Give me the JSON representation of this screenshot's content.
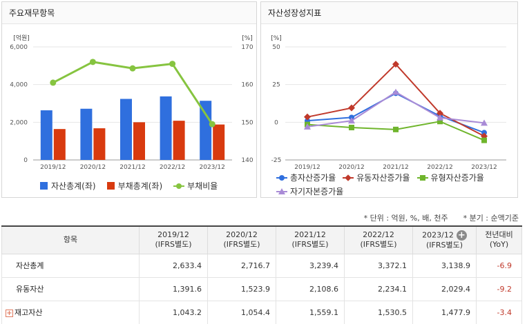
{
  "left_panel": {
    "title": "주요재무항목"
  },
  "right_panel": {
    "title": "자산성장성지표"
  },
  "chart_data": [
    {
      "type": "bar",
      "categories": [
        "2019/12",
        "2020/12",
        "2021/12",
        "2022/12",
        "2023/12"
      ],
      "y_unit": "[억원]",
      "y2_unit": "[%]",
      "ylim": [
        0,
        6000
      ],
      "y_ticks": [
        "6,000",
        "4,000",
        "2,000",
        "0"
      ],
      "y2lim": [
        140,
        170
      ],
      "y2_ticks": [
        "170",
        "160",
        "150",
        "140"
      ],
      "series": [
        {
          "name": "자산총계(좌)",
          "kind": "bar",
          "color": "#2f6fde",
          "values": [
            2633.4,
            2716.7,
            3239.4,
            3372.1,
            3138.9
          ]
        },
        {
          "name": "부채총계(좌)",
          "kind": "bar",
          "color": "#d83a0f",
          "values": [
            1640,
            1680,
            2000,
            2080,
            1880
          ]
        },
        {
          "name": "부채비율",
          "kind": "line",
          "axis": "right",
          "color": "#86c440",
          "values": [
            160.5,
            166.0,
            164.3,
            165.5,
            149.5
          ]
        }
      ]
    },
    {
      "type": "line",
      "categories": [
        "2019/12",
        "2020/12",
        "2021/12",
        "2022/12",
        "2023/12"
      ],
      "ylim": [
        -25,
        50
      ],
      "y_ticks": [
        "50",
        "25",
        "0",
        "-25"
      ],
      "series": [
        {
          "name": "총자산증가율",
          "color": "#2f6fde",
          "marker": "circle",
          "values": [
            1.0,
            3.2,
            19.2,
            4.1,
            -6.9
          ]
        },
        {
          "name": "유동자산증가율",
          "color": "#c0392b",
          "marker": "diamond",
          "values": [
            3.5,
            9.5,
            38.5,
            6.0,
            -9.2
          ]
        },
        {
          "name": "유형자산증가율",
          "color": "#6fb52c",
          "marker": "square",
          "values": [
            -1.5,
            -3.5,
            -4.8,
            0.5,
            -12.0
          ]
        },
        {
          "name": "자기자본증가율",
          "color": "#a98bd6",
          "marker": "triangle",
          "values": [
            -3.0,
            1.0,
            20.0,
            3.0,
            -0.5
          ]
        }
      ]
    }
  ],
  "notes": {
    "unit": "* 단위 : 억원, %, 배, 천주",
    "quarter": "* 분기 : 순액기준"
  },
  "table": {
    "header_item": "항목",
    "columns": [
      {
        "period": "2019/12",
        "basis": "(IFRS별도)"
      },
      {
        "period": "2020/12",
        "basis": "(IFRS별도)"
      },
      {
        "period": "2021/12",
        "basis": "(IFRS별도)"
      },
      {
        "period": "2022/12",
        "basis": "(IFRS별도)"
      },
      {
        "period": "2023/12",
        "basis": "(IFRS별도)"
      }
    ],
    "yoy_header": "전년대비",
    "yoy_sub": "(YoY)",
    "rows": [
      {
        "label": "자산총계",
        "values": [
          "2,633.4",
          "2,716.7",
          "3,239.4",
          "3,372.1",
          "3,138.9"
        ],
        "yoy": "-6.9"
      },
      {
        "label": "유동자산",
        "values": [
          "1,391.6",
          "1,523.9",
          "2,108.6",
          "2,234.1",
          "2,029.4"
        ],
        "yoy": "-9.2"
      },
      {
        "label": "재고자산",
        "values": [
          "1,043.2",
          "1,054.4",
          "1,559.1",
          "1,530.5",
          "1,477.9"
        ],
        "yoy": "-3.4"
      }
    ]
  }
}
